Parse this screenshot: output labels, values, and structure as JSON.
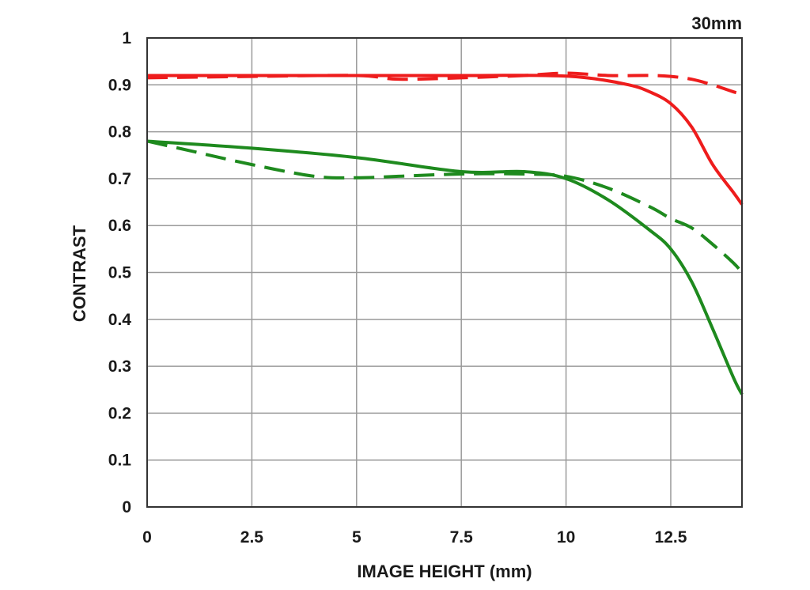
{
  "chart_data": {
    "type": "line",
    "title": "",
    "annotation": "30mm",
    "xlabel": "IMAGE HEIGHT (mm)",
    "ylabel": "CONTRAST",
    "xlim": [
      0,
      14.2
    ],
    "ylim": [
      0,
      1
    ],
    "x_ticks": [
      "0",
      "2.5",
      "5",
      "7.5",
      "10",
      "12.5"
    ],
    "x_tick_values": [
      0,
      2.5,
      5,
      7.5,
      10,
      12.5
    ],
    "y_ticks": [
      "0",
      "0.1",
      "0.2",
      "0.3",
      "0.4",
      "0.5",
      "0.6",
      "0.7",
      "0.8",
      "0.9",
      "1"
    ],
    "y_tick_values": [
      0,
      0.1,
      0.2,
      0.3,
      0.4,
      0.5,
      0.6,
      0.7,
      0.8,
      0.9,
      1.0
    ],
    "grid": true,
    "colors": {
      "red": "#ee1c1c",
      "green": "#1e8a1e",
      "grid": "#9a9a9a",
      "frame": "#333333"
    },
    "series": [
      {
        "color": "red",
        "style": "solid",
        "x": [
          0,
          2.5,
          5,
          7.5,
          9.5,
          10.5,
          11.5,
          12,
          12.5,
          13,
          13.5,
          14,
          14.2
        ],
        "y": [
          0.92,
          0.92,
          0.92,
          0.92,
          0.92,
          0.915,
          0.9,
          0.885,
          0.86,
          0.81,
          0.73,
          0.67,
          0.645
        ]
      },
      {
        "color": "red",
        "style": "dashed",
        "x": [
          0,
          2.5,
          5,
          6,
          7.5,
          9,
          10,
          11,
          12,
          12.5,
          13,
          13.5,
          14,
          14.2
        ],
        "y": [
          0.915,
          0.918,
          0.92,
          0.912,
          0.915,
          0.92,
          0.925,
          0.92,
          0.92,
          0.918,
          0.912,
          0.9,
          0.885,
          0.88
        ]
      },
      {
        "color": "green",
        "style": "solid",
        "x": [
          0,
          2.5,
          5,
          7.5,
          9,
          10,
          11,
          12,
          12.5,
          13,
          13.5,
          14,
          14.2
        ],
        "y": [
          0.78,
          0.765,
          0.745,
          0.715,
          0.715,
          0.7,
          0.655,
          0.59,
          0.55,
          0.48,
          0.38,
          0.275,
          0.24
        ]
      },
      {
        "color": "green",
        "style": "dashed",
        "x": [
          0,
          1,
          2.5,
          4,
          5,
          6,
          7.5,
          9,
          10,
          11,
          12,
          12.5,
          13,
          13.5,
          14,
          14.2
        ],
        "y": [
          0.78,
          0.76,
          0.73,
          0.705,
          0.702,
          0.705,
          0.71,
          0.71,
          0.705,
          0.68,
          0.64,
          0.615,
          0.595,
          0.56,
          0.52,
          0.5
        ]
      }
    ]
  }
}
